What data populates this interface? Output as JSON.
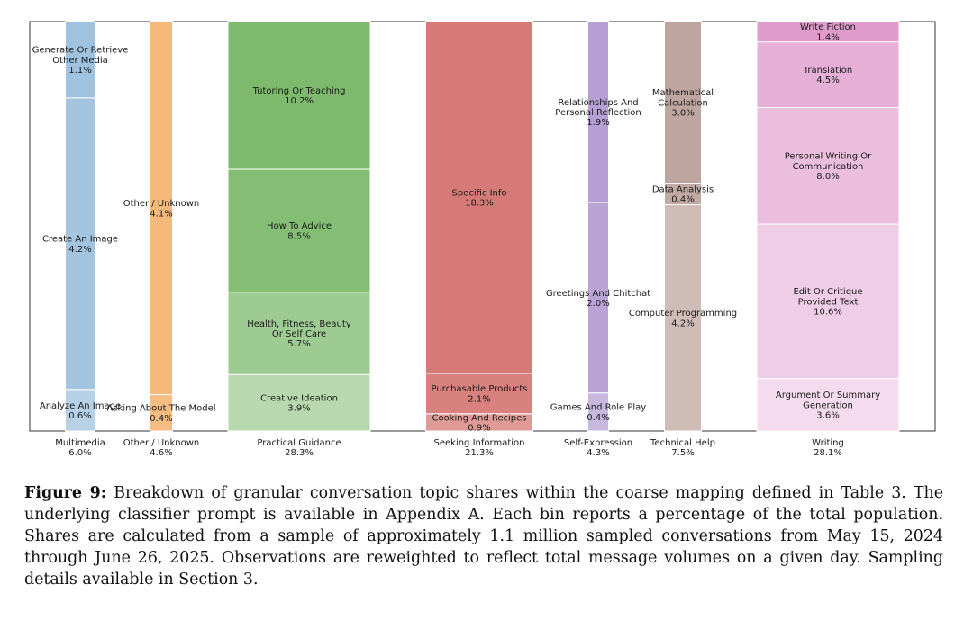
{
  "chart_data": {
    "type": "stacked-bar",
    "groups": [
      {
        "name": "Multimedia",
        "total": "6.0%",
        "color": "#9fc2de",
        "segments": [
          {
            "label": "Analyze An Image",
            "value": 0.6
          },
          {
            "label": "Create An Image",
            "value": 4.2
          },
          {
            "label": "Generate Or Retrieve Other Media",
            "value": 1.1
          }
        ]
      },
      {
        "name": "Other / Unknown",
        "total": "4.6%",
        "color": "#f6b97c",
        "segments": [
          {
            "label": "Asking About The Model",
            "value": 0.4
          },
          {
            "label": "Other / Unknown",
            "value": 4.1
          }
        ]
      },
      {
        "name": "Practical Guidance",
        "total": "28.3%",
        "color": "#7dba6e",
        "segments": [
          {
            "label": "Creative Ideation",
            "value": 3.9
          },
          {
            "label": "Health, Fitness, Beauty Or Self Care",
            "value": 5.7
          },
          {
            "label": "How To Advice",
            "value": 8.5
          },
          {
            "label": "Tutoring Or Teaching",
            "value": 10.2
          }
        ]
      },
      {
        "name": "Seeking Information",
        "total": "21.3%",
        "color": "#d67a77",
        "segments": [
          {
            "label": "Cooking And Recipes",
            "value": 0.9
          },
          {
            "label": "Purchasable Products",
            "value": 2.1
          },
          {
            "label": "Specific Info",
            "value": 18.3
          }
        ]
      },
      {
        "name": "Self-Expression",
        "total": "4.3%",
        "color": "#b59fd3",
        "segments": [
          {
            "label": "Games And Role Play",
            "value": 0.4
          },
          {
            "label": "Greetings And Chitchat",
            "value": 2.0
          },
          {
            "label": "Relationships And Personal Reflection",
            "value": 1.9
          }
        ]
      },
      {
        "name": "Technical Help",
        "total": "7.5%",
        "color": "#bfa59f",
        "segments": [
          {
            "label": "Computer Programming",
            "value": 4.2
          },
          {
            "label": "Data Analysis",
            "value": 0.4
          },
          {
            "label": "Mathematical Calculation",
            "value": 3.0
          }
        ]
      },
      {
        "name": "Writing",
        "total": "28.1%",
        "color": "#e09bcd",
        "segments": [
          {
            "label": "Argument Or Summary Generation",
            "value": 3.6
          },
          {
            "label": "Edit Or Critique Provided Text",
            "value": 10.6
          },
          {
            "label": "Personal Writing Or Communication",
            "value": 8.0
          },
          {
            "label": "Translation",
            "value": 4.5
          },
          {
            "label": "Write Fiction",
            "value": 1.4
          }
        ]
      }
    ]
  },
  "caption": {
    "label": "Figure 9:",
    "text": "Breakdown of granular conversation topic shares within the coarse mapping defined in Table 3. The underlying classifier prompt is available in Appendix A. Each bin reports a percentage of the total population. Shares are calculated from a sample of approximately 1.1 million sampled conversations from May 15, 2024 through June 26, 2025. Observations are reweighted to reflect total message volumes on a given day. Sampling details available in Section 3."
  }
}
